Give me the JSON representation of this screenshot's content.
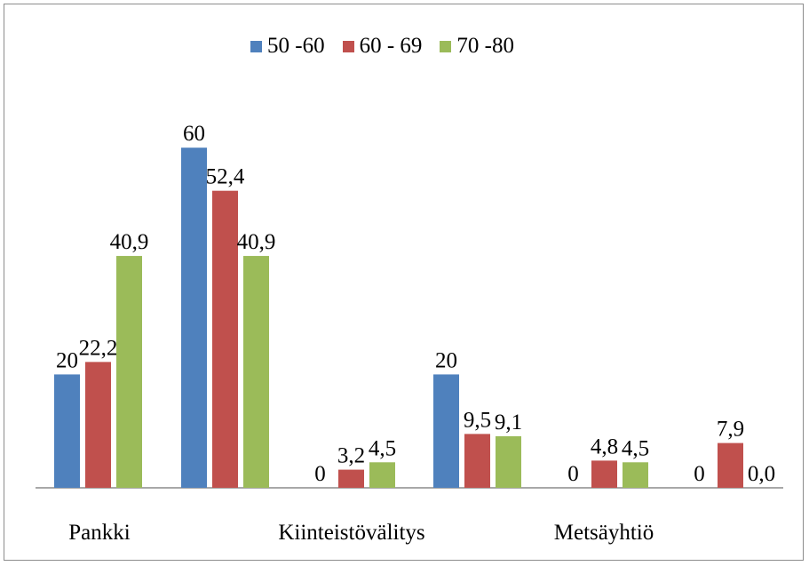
{
  "chart_data": {
    "type": "bar",
    "categories": [
      "Pankki",
      "",
      "Kiinteistövälitys",
      "",
      "Metsäyhtiö",
      ""
    ],
    "series": [
      {
        "name": "50 -60",
        "color": "#4f81bd",
        "values": [
          20,
          60,
          0,
          20,
          0,
          0
        ],
        "labels": [
          "20",
          "60",
          "0",
          "20",
          "0",
          "0"
        ]
      },
      {
        "name": "60 - 69",
        "color": "#c0504d",
        "values": [
          22.2,
          52.4,
          3.2,
          9.5,
          4.8,
          7.9
        ],
        "labels": [
          "22,2",
          "52,4",
          "3,2",
          "9,5",
          "4,8",
          "7,9"
        ]
      },
      {
        "name": "70 -80",
        "color": "#9bbb59",
        "values": [
          40.9,
          40.9,
          4.5,
          9.1,
          4.5,
          0.0
        ],
        "labels": [
          "40,9",
          "40,9",
          "4,5",
          "9,1",
          "4,5",
          "0,0"
        ]
      }
    ],
    "ylim": [
      0,
      60
    ],
    "legend_position": "top",
    "grid": false
  }
}
